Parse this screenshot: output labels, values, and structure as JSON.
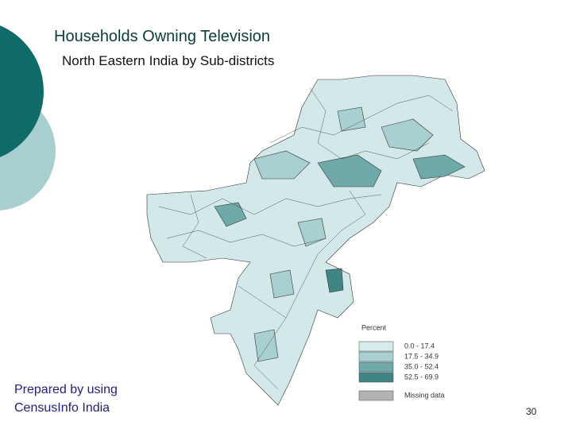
{
  "header": {
    "title": "Households Owning Television",
    "subtitle": "North Eastern India by Sub-districts"
  },
  "legend": {
    "title": "Percent",
    "items": [
      "0.0 - 17.4",
      "17.5 - 34.9",
      "35.0 - 52.4",
      "52.5 - 69.9"
    ],
    "missing": "Missing data"
  },
  "footer": {
    "credit_lines": [
      "Prepared by using",
      "CensusInfo India"
    ]
  },
  "page_number": "30"
}
